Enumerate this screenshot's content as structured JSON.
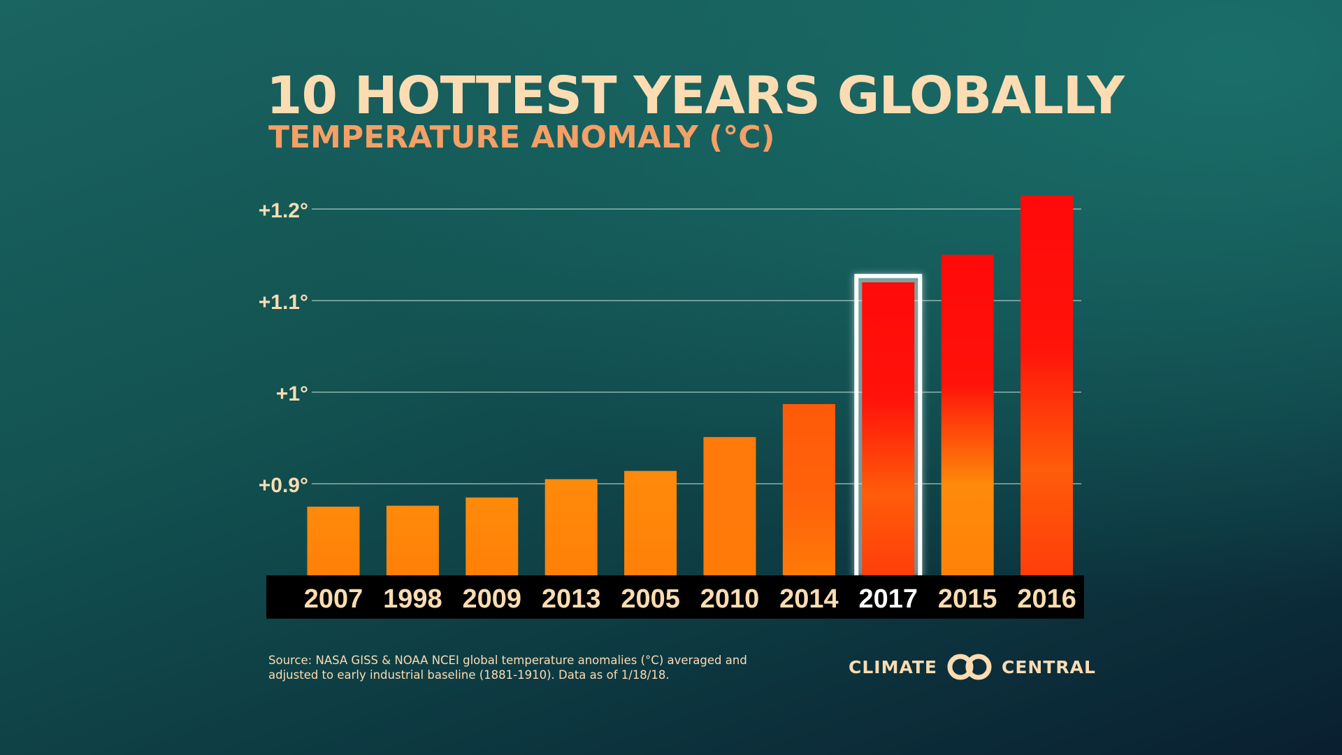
{
  "colors": {
    "title": "#fcdcb2",
    "subtitle": "#f4a066",
    "bar_low": "#ff8a0a",
    "bar_high": "#ff0d0a",
    "highlight_outline": "#ffffff",
    "label_normal": "#fcdcb2",
    "label_highlight": "#ffffff",
    "label_band": "#000000"
  },
  "source_text": "Source: NASA GISS & NOAA NCEI global temperature anomalies (°C) averaged and adjusted to early industrial baseline (1881-1910). Data as of 1/18/18.",
  "logo": {
    "left_text": "CLIMATE",
    "right_text": "CENTRAL",
    "icon": "interlocking-rings-icon"
  },
  "chart_data": {
    "type": "bar",
    "title": "10 HOTTEST YEARS GLOBALLY",
    "subtitle": "TEMPERATURE ANOMALY (°C)",
    "categories": [
      "2007",
      "1998",
      "2009",
      "2013",
      "2005",
      "2010",
      "2014",
      "2017",
      "2015",
      "2016"
    ],
    "values": [
      0.875,
      0.876,
      0.885,
      0.905,
      0.914,
      0.951,
      0.987,
      1.12,
      1.15,
      1.215
    ],
    "highlight": "2017",
    "yticks": [
      0.9,
      1.0,
      1.1,
      1.2
    ],
    "ytick_labels": [
      "+0.9°",
      "+1°",
      "+1.1°",
      "+1.2°"
    ],
    "ylim": [
      0.8,
      1.2
    ],
    "grid": true,
    "legend": "none"
  }
}
